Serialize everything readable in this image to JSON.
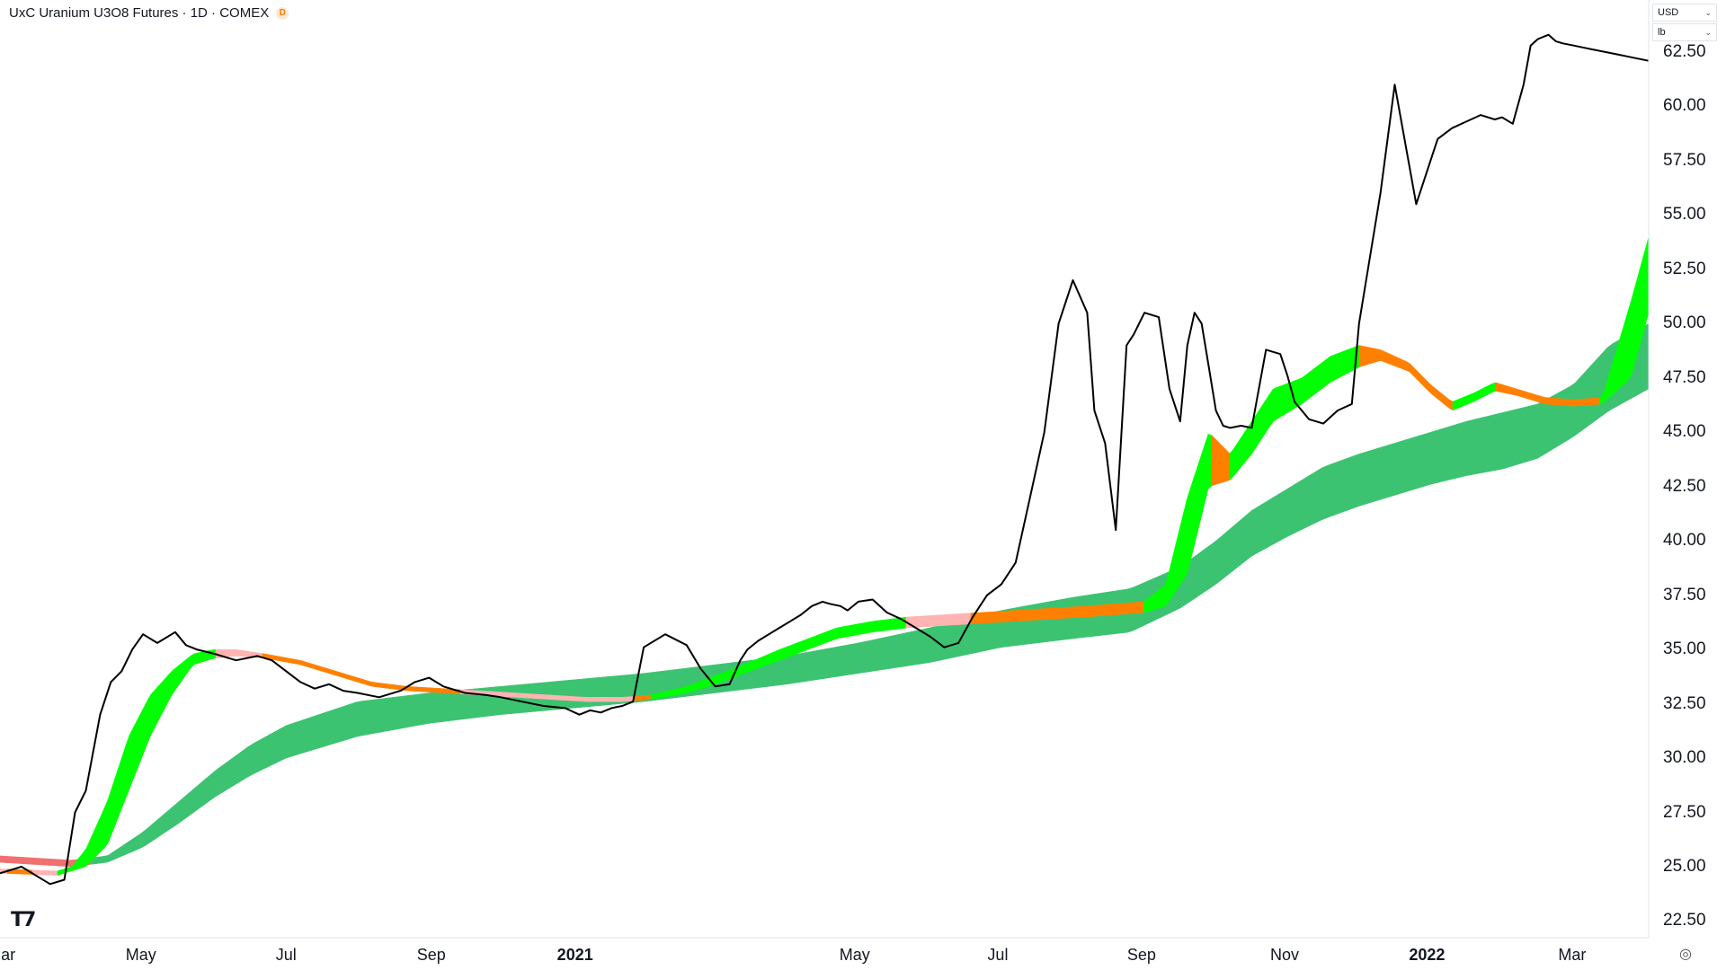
{
  "header": {
    "title": "UxC Uranium U3O8 Futures · 1D · COMEX",
    "badge": "D"
  },
  "units": {
    "currency": "USD",
    "unit": "lb",
    "caret": "⌄"
  },
  "colors": {
    "price": "#000000",
    "fast_up": "#00ff00",
    "fast_down": "#ff8000",
    "fast_flat": "#ffb3b3",
    "slow_up": "#3cc371",
    "slow_down": "#f07070"
  },
  "icons": {
    "logo": "tradingview-logo-icon",
    "settings": "settings-gear-icon"
  },
  "chart_data": {
    "type": "line",
    "title": "UxC Uranium U3O8 Futures · 1D · COMEX",
    "ylim": [
      21.5,
      64.0
    ],
    "y_ticks": [
      "22.50",
      "25.00",
      "27.50",
      "30.00",
      "32.50",
      "35.00",
      "37.50",
      "40.00",
      "42.50",
      "45.00",
      "47.50",
      "50.00",
      "52.50",
      "55.00",
      "57.50",
      "60.00",
      "62.50"
    ],
    "x_ticks": [
      {
        "label": "Mar",
        "x": 0.02,
        "bold": false
      },
      {
        "label": "May",
        "x": 1.97,
        "bold": false
      },
      {
        "label": "Jul",
        "x": 4.0,
        "bold": false
      },
      {
        "label": "Sep",
        "x": 6.03,
        "bold": false
      },
      {
        "label": "2021",
        "x": 8.04,
        "bold": true
      },
      {
        "label": "May",
        "x": 11.95,
        "bold": false
      },
      {
        "label": "Jul",
        "x": 13.95,
        "bold": false
      },
      {
        "label": "Sep",
        "x": 15.96,
        "bold": false
      },
      {
        "label": "Nov",
        "x": 17.96,
        "bold": false
      },
      {
        "label": "2022",
        "x": 19.95,
        "bold": true
      },
      {
        "label": "Mar",
        "x": 21.98,
        "bold": false
      }
    ],
    "x_unit": "months since start",
    "series": [
      {
        "key": "price",
        "x": [
          0,
          0.3,
          0.5,
          0.7,
          0.9,
          1.05,
          1.2,
          1.4,
          1.55,
          1.7,
          1.85,
          2.0,
          2.2,
          2.45,
          2.6,
          2.75,
          3.0,
          3.3,
          3.6,
          3.8,
          4.0,
          4.2,
          4.4,
          4.6,
          4.8,
          5.0,
          5.3,
          5.6,
          5.8,
          6.0,
          6.2,
          6.5,
          6.8,
          7.0,
          7.3,
          7.6,
          7.9,
          8.1,
          8.25,
          8.4,
          8.55,
          8.7,
          8.85,
          9.0,
          9.3,
          9.6,
          9.8,
          10.0,
          10.2,
          10.35,
          10.45,
          10.6,
          10.75,
          10.9,
          11.05,
          11.2,
          11.35,
          11.5,
          11.6,
          11.75,
          11.85,
          12.0,
          12.2,
          12.4,
          12.6,
          12.8,
          13.0,
          13.2,
          13.4,
          13.6,
          13.8,
          14.0,
          14.2,
          14.4,
          14.6,
          14.8,
          15.0,
          15.2,
          15.3,
          15.45,
          15.6,
          15.75,
          15.85,
          16.0,
          16.2,
          16.35,
          16.5,
          16.6,
          16.7,
          16.8,
          16.9,
          17.0,
          17.1,
          17.2,
          17.35,
          17.5,
          17.7,
          17.9,
          18.0,
          18.1,
          18.3,
          18.5,
          18.7,
          18.9,
          19.0,
          19.1,
          19.3,
          19.5,
          19.8,
          20.0,
          20.1,
          20.3,
          20.5,
          20.7,
          20.9,
          21.0,
          21.15,
          21.3,
          21.4,
          21.5,
          21.65,
          21.75,
          21.85,
          22.0,
          22.15,
          22.3,
          22.45,
          22.6,
          22.75,
          22.9,
          23.05
        ],
        "values": [
          24.7,
          25.0,
          24.6,
          24.2,
          24.4,
          27.5,
          28.5,
          32.0,
          33.5,
          34.0,
          35.0,
          35.7,
          35.3,
          35.8,
          35.2,
          35.0,
          34.8,
          34.5,
          34.7,
          34.5,
          34.0,
          33.5,
          33.2,
          33.4,
          33.1,
          33.0,
          32.8,
          33.1,
          33.5,
          33.7,
          33.3,
          33.0,
          32.9,
          32.8,
          32.6,
          32.4,
          32.3,
          32.0,
          32.2,
          32.1,
          32.3,
          32.4,
          32.6,
          35.1,
          35.7,
          35.2,
          34.1,
          33.3,
          33.4,
          34.5,
          35.0,
          35.4,
          35.7,
          36.0,
          36.3,
          36.6,
          37.0,
          37.2,
          37.1,
          37.0,
          36.8,
          37.2,
          37.3,
          36.7,
          36.4,
          36.0,
          35.6,
          35.1,
          35.3,
          36.5,
          37.5,
          38.0,
          39.0,
          42.0,
          45.0,
          50.0,
          52.0,
          50.5,
          46.0,
          44.5,
          40.5,
          49.0,
          49.5,
          50.5,
          50.3,
          47.0,
          45.5,
          49.0,
          50.5,
          50.0,
          48.0,
          46.0,
          45.3,
          45.2,
          45.3,
          45.2,
          48.8,
          48.6,
          47.6,
          46.4,
          45.6,
          45.4,
          46.0,
          46.3,
          50.0,
          52.0,
          56.0,
          61.0,
          55.5,
          57.5,
          58.5,
          59.0,
          59.3,
          59.6,
          59.4,
          59.5,
          59.2,
          61.0,
          62.8,
          63.1,
          63.3,
          63.0,
          62.9,
          62.8,
          62.7,
          62.6,
          62.5,
          62.4,
          62.3,
          62.2,
          62.1
        ],
        "note": "daily closes (black line)"
      },
      {
        "key": "fast_top",
        "x": [
          0,
          0.8,
          1.0,
          1.2,
          1.5,
          1.8,
          2.1,
          2.4,
          2.7,
          3.0,
          3.3,
          3.7,
          4.2,
          4.7,
          5.2,
          5.7,
          6.2,
          6.7,
          7.2,
          7.7,
          8.2,
          8.7,
          9.1,
          9.6,
          10.0,
          10.4,
          10.9,
          11.3,
          11.7,
          12.2,
          12.7,
          13.2,
          13.7,
          14.2,
          14.7,
          15.2,
          15.6,
          16.0,
          16.3,
          16.6,
          16.9,
          17.2,
          17.5,
          17.8,
          18.2,
          18.6,
          19.0,
          19.3,
          19.7,
          20.0,
          20.3,
          20.6,
          20.9,
          21.2,
          21.6,
          22.0,
          22.4,
          22.8,
          23.05
        ],
        "values": [
          24.9,
          24.8,
          25.0,
          25.8,
          28.0,
          31.0,
          32.9,
          34.0,
          34.8,
          35.0,
          35.0,
          34.8,
          34.5,
          34.0,
          33.5,
          33.3,
          33.2,
          33.1,
          33.0,
          32.9,
          32.8,
          32.8,
          32.9,
          33.3,
          33.8,
          34.3,
          35.0,
          35.5,
          36.0,
          36.3,
          36.5,
          36.6,
          36.7,
          36.8,
          36.9,
          37.0,
          37.1,
          37.2,
          38.0,
          42.0,
          45.0,
          44.0,
          45.5,
          47.0,
          47.5,
          48.5,
          49.0,
          48.8,
          48.2,
          47.2,
          46.4,
          46.8,
          47.3,
          47.0,
          46.6,
          46.5,
          46.6,
          51.0,
          54.0
        ],
        "note": "upper band of short ribbon"
      },
      {
        "key": "fast_bot",
        "x": [
          0,
          0.8,
          1.0,
          1.2,
          1.5,
          1.8,
          2.1,
          2.4,
          2.7,
          3.0,
          3.3,
          3.7,
          4.2,
          4.7,
          5.2,
          5.7,
          6.2,
          6.7,
          7.2,
          7.7,
          8.2,
          8.7,
          9.1,
          9.6,
          10.0,
          10.4,
          10.9,
          11.3,
          11.7,
          12.2,
          12.7,
          13.2,
          13.7,
          14.2,
          14.7,
          15.2,
          15.6,
          16.0,
          16.3,
          16.6,
          16.9,
          17.2,
          17.5,
          17.8,
          18.2,
          18.6,
          19.0,
          19.3,
          19.7,
          20.0,
          20.3,
          20.6,
          20.9,
          21.2,
          21.6,
          22.0,
          22.4,
          22.8,
          23.05
        ],
        "values": [
          24.7,
          24.6,
          24.8,
          25.0,
          26.0,
          28.5,
          31.0,
          32.9,
          34.3,
          34.6,
          34.7,
          34.6,
          34.3,
          33.8,
          33.3,
          33.1,
          33.0,
          32.9,
          32.8,
          32.7,
          32.6,
          32.6,
          32.7,
          33.0,
          33.4,
          33.9,
          34.5,
          35.0,
          35.5,
          35.8,
          36.0,
          36.1,
          36.2,
          36.3,
          36.4,
          36.5,
          36.6,
          36.7,
          37.0,
          38.5,
          42.5,
          42.8,
          44.0,
          45.5,
          46.3,
          47.3,
          48.0,
          48.3,
          47.8,
          46.8,
          46.0,
          46.4,
          46.9,
          46.7,
          46.3,
          46.2,
          46.3,
          47.5,
          50.5
        ],
        "note": "lower band of short ribbon"
      },
      {
        "key": "slow_top",
        "x": [
          0,
          1.0,
          1.5,
          2.0,
          2.5,
          3.0,
          3.5,
          4.0,
          5.0,
          6.0,
          7.0,
          8.0,
          9.0,
          10.0,
          11.0,
          12.0,
          13.0,
          14.0,
          15.0,
          15.8,
          16.5,
          17.0,
          17.5,
          18.0,
          18.5,
          19.0,
          19.5,
          20.0,
          20.5,
          21.0,
          21.5,
          22.0,
          22.5,
          23.05
        ],
        "values": [
          25.5,
          25.3,
          25.5,
          26.6,
          28.0,
          29.4,
          30.6,
          31.5,
          32.6,
          33.0,
          33.3,
          33.6,
          33.9,
          34.3,
          34.7,
          35.3,
          36.0,
          36.8,
          37.4,
          37.8,
          38.8,
          40.0,
          41.4,
          42.4,
          43.4,
          44.0,
          44.5,
          45.0,
          45.5,
          45.9,
          46.3,
          47.2,
          49.0,
          50.0
        ],
        "note": "upper band of long ribbon"
      },
      {
        "key": "slow_bot",
        "x": [
          0,
          1.0,
          1.5,
          2.0,
          2.5,
          3.0,
          3.5,
          4.0,
          5.0,
          6.0,
          7.0,
          8.0,
          9.0,
          10.0,
          11.0,
          12.0,
          13.0,
          14.0,
          15.0,
          15.8,
          16.5,
          17.0,
          17.5,
          18.0,
          18.5,
          19.0,
          19.5,
          20.0,
          20.5,
          21.0,
          21.5,
          22.0,
          22.5,
          23.05
        ],
        "values": [
          25.2,
          25.0,
          25.2,
          25.9,
          27.0,
          28.2,
          29.2,
          30.0,
          31.0,
          31.6,
          32.0,
          32.3,
          32.6,
          33.0,
          33.4,
          33.9,
          34.4,
          35.1,
          35.5,
          35.8,
          36.9,
          38.0,
          39.3,
          40.2,
          41.0,
          41.6,
          42.1,
          42.6,
          43.0,
          43.3,
          43.8,
          44.8,
          46.0,
          47.0
        ],
        "note": "lower band of long ribbon"
      }
    ]
  }
}
